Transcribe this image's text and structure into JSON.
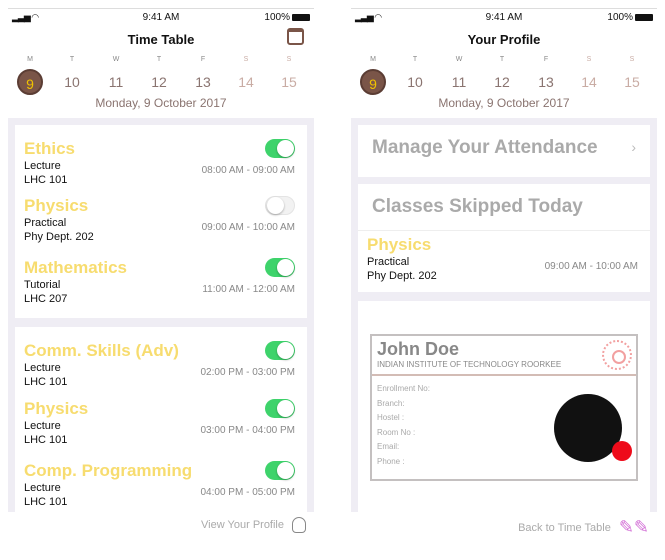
{
  "status": {
    "signal": "signal-icon",
    "wifi": "wifi-icon",
    "time": "9:41 AM",
    "battery": "100%"
  },
  "week": [
    {
      "l": "M",
      "n": "9"
    },
    {
      "l": "T",
      "n": "10"
    },
    {
      "l": "W",
      "n": "11"
    },
    {
      "l": "T",
      "n": "12"
    },
    {
      "l": "F",
      "n": "13"
    },
    {
      "l": "S",
      "n": "14"
    },
    {
      "l": "S",
      "n": "15"
    }
  ],
  "selected_date": "Monday, 9 October 2017",
  "colors": {
    "accent": "#7a5548",
    "subject": "#f7dc6f",
    "toggle_on": "#3ed36b"
  },
  "timetable": {
    "title": "Time Table",
    "card1": [
      {
        "subject": "Ethics",
        "kind": "Lecture",
        "room": "LHC 101",
        "time": "08:00 AM - 09:00 AM",
        "on": true
      },
      {
        "subject": "Physics",
        "kind": "Practical",
        "room": "Phy Dept. 202",
        "time": "09:00 AM - 10:00 AM",
        "on": false
      },
      {
        "subject": "Mathematics",
        "kind": "Tutorial",
        "room": "LHC 207",
        "time": "11:00 AM - 12:00 AM",
        "on": true
      }
    ],
    "card2": [
      {
        "subject": "Comm. Skills (Adv)",
        "kind": "Lecture",
        "room": "LHC 101",
        "time": "02:00 PM - 03:00 PM",
        "on": true
      },
      {
        "subject": "Physics",
        "kind": "Lecture",
        "room": "LHC 101",
        "time": "03:00 PM - 04:00 PM",
        "on": true
      },
      {
        "subject": "Comp. Programming",
        "kind": "Lecture",
        "room": "LHC 101",
        "time": "04:00 PM - 05:00 PM",
        "on": true
      }
    ],
    "footer": "View Your Profile"
  },
  "profile": {
    "title": "Your Profile",
    "manage": "Manage Your Attendance",
    "skipped_title": "Classes Skipped Today",
    "skipped": {
      "subject": "Physics",
      "kind": "Practical",
      "room": "Phy Dept. 202",
      "time": "09:00 AM - 10:00 AM"
    },
    "id": {
      "name": "John Doe",
      "institute": "INDIAN INSTITUTE OF TECHNOLOGY ROORKEE",
      "fields": [
        "Enrollment No:",
        "Branch:",
        "Hostel :",
        "Room No :",
        "Email:",
        "Phone :"
      ]
    },
    "footer": "Back to Time Table"
  }
}
